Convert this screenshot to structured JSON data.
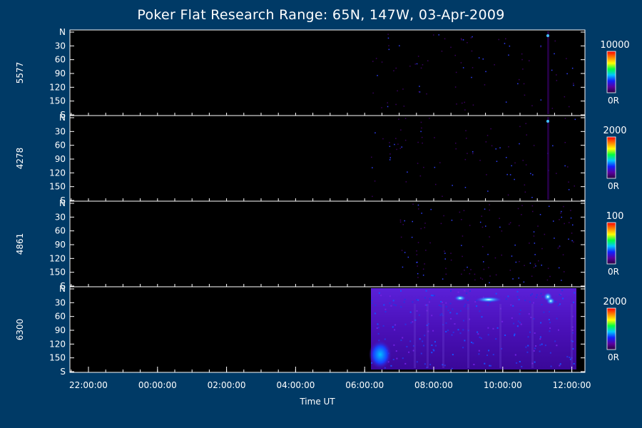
{
  "chart_data": {
    "type": "heatmap",
    "title": "Poker Flat Research Range: 65N, 147W, 03-Apr-2009",
    "xlabel": "Time UT",
    "x_ticks": [
      "22:00:00",
      "00:00:00",
      "02:00:00",
      "04:00:00",
      "06:00:00",
      "08:00:00",
      "10:00:00",
      "12:00:00"
    ],
    "y_ticks": [
      "N",
      "30",
      "60",
      "90",
      "120",
      "150",
      "S"
    ],
    "panels": [
      {
        "name": "5577",
        "colorbar_max": "10000",
        "colorbar_min": "0R"
      },
      {
        "name": "4278",
        "colorbar_max": "2000",
        "colorbar_min": "0R"
      },
      {
        "name": "4861",
        "colorbar_max": "100",
        "colorbar_min": "0R"
      },
      {
        "name": "6300",
        "colorbar_max": "2000",
        "colorbar_min": "0R"
      }
    ],
    "colorscale": [
      "#2a0040",
      "#5a00a0",
      "#1020ff",
      "#00c8ff",
      "#00ff40",
      "#ffff00",
      "#ff8000",
      "#ff0000"
    ]
  }
}
